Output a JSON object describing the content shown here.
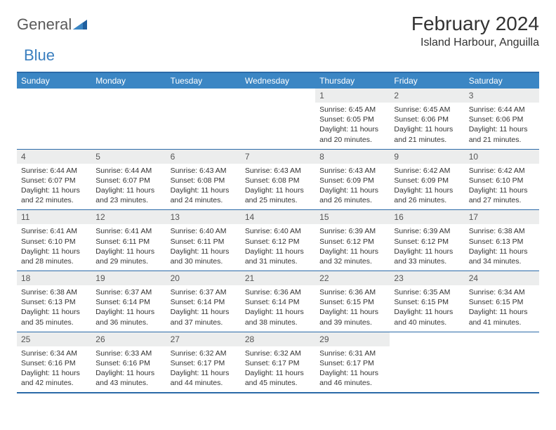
{
  "logo": {
    "text1": "General",
    "text2": "Blue"
  },
  "title": "February 2024",
  "location": "Island Harbour, Anguilla",
  "weekdays": [
    "Sunday",
    "Monday",
    "Tuesday",
    "Wednesday",
    "Thursday",
    "Friday",
    "Saturday"
  ],
  "colors": {
    "header_bar": "#3b86c4",
    "border": "#2b6aa8",
    "daynum_bg": "#eceded",
    "logo_blue": "#3b7fbf"
  },
  "fonts": {
    "month_title_size": 28,
    "location_size": 16,
    "weekday_size": 12,
    "daynum_size": 12,
    "cell_size": 10.5
  },
  "weeks": [
    [
      null,
      null,
      null,
      null,
      {
        "n": "1",
        "sunrise": "6:45 AM",
        "sunset": "6:05 PM",
        "dl": "11 hours and 20 minutes."
      },
      {
        "n": "2",
        "sunrise": "6:45 AM",
        "sunset": "6:06 PM",
        "dl": "11 hours and 21 minutes."
      },
      {
        "n": "3",
        "sunrise": "6:44 AM",
        "sunset": "6:06 PM",
        "dl": "11 hours and 21 minutes."
      }
    ],
    [
      {
        "n": "4",
        "sunrise": "6:44 AM",
        "sunset": "6:07 PM",
        "dl": "11 hours and 22 minutes."
      },
      {
        "n": "5",
        "sunrise": "6:44 AM",
        "sunset": "6:07 PM",
        "dl": "11 hours and 23 minutes."
      },
      {
        "n": "6",
        "sunrise": "6:43 AM",
        "sunset": "6:08 PM",
        "dl": "11 hours and 24 minutes."
      },
      {
        "n": "7",
        "sunrise": "6:43 AM",
        "sunset": "6:08 PM",
        "dl": "11 hours and 25 minutes."
      },
      {
        "n": "8",
        "sunrise": "6:43 AM",
        "sunset": "6:09 PM",
        "dl": "11 hours and 26 minutes."
      },
      {
        "n": "9",
        "sunrise": "6:42 AM",
        "sunset": "6:09 PM",
        "dl": "11 hours and 26 minutes."
      },
      {
        "n": "10",
        "sunrise": "6:42 AM",
        "sunset": "6:10 PM",
        "dl": "11 hours and 27 minutes."
      }
    ],
    [
      {
        "n": "11",
        "sunrise": "6:41 AM",
        "sunset": "6:10 PM",
        "dl": "11 hours and 28 minutes."
      },
      {
        "n": "12",
        "sunrise": "6:41 AM",
        "sunset": "6:11 PM",
        "dl": "11 hours and 29 minutes."
      },
      {
        "n": "13",
        "sunrise": "6:40 AM",
        "sunset": "6:11 PM",
        "dl": "11 hours and 30 minutes."
      },
      {
        "n": "14",
        "sunrise": "6:40 AM",
        "sunset": "6:12 PM",
        "dl": "11 hours and 31 minutes."
      },
      {
        "n": "15",
        "sunrise": "6:39 AM",
        "sunset": "6:12 PM",
        "dl": "11 hours and 32 minutes."
      },
      {
        "n": "16",
        "sunrise": "6:39 AM",
        "sunset": "6:12 PM",
        "dl": "11 hours and 33 minutes."
      },
      {
        "n": "17",
        "sunrise": "6:38 AM",
        "sunset": "6:13 PM",
        "dl": "11 hours and 34 minutes."
      }
    ],
    [
      {
        "n": "18",
        "sunrise": "6:38 AM",
        "sunset": "6:13 PM",
        "dl": "11 hours and 35 minutes."
      },
      {
        "n": "19",
        "sunrise": "6:37 AM",
        "sunset": "6:14 PM",
        "dl": "11 hours and 36 minutes."
      },
      {
        "n": "20",
        "sunrise": "6:37 AM",
        "sunset": "6:14 PM",
        "dl": "11 hours and 37 minutes."
      },
      {
        "n": "21",
        "sunrise": "6:36 AM",
        "sunset": "6:14 PM",
        "dl": "11 hours and 38 minutes."
      },
      {
        "n": "22",
        "sunrise": "6:36 AM",
        "sunset": "6:15 PM",
        "dl": "11 hours and 39 minutes."
      },
      {
        "n": "23",
        "sunrise": "6:35 AM",
        "sunset": "6:15 PM",
        "dl": "11 hours and 40 minutes."
      },
      {
        "n": "24",
        "sunrise": "6:34 AM",
        "sunset": "6:15 PM",
        "dl": "11 hours and 41 minutes."
      }
    ],
    [
      {
        "n": "25",
        "sunrise": "6:34 AM",
        "sunset": "6:16 PM",
        "dl": "11 hours and 42 minutes."
      },
      {
        "n": "26",
        "sunrise": "6:33 AM",
        "sunset": "6:16 PM",
        "dl": "11 hours and 43 minutes."
      },
      {
        "n": "27",
        "sunrise": "6:32 AM",
        "sunset": "6:17 PM",
        "dl": "11 hours and 44 minutes."
      },
      {
        "n": "28",
        "sunrise": "6:32 AM",
        "sunset": "6:17 PM",
        "dl": "11 hours and 45 minutes."
      },
      {
        "n": "29",
        "sunrise": "6:31 AM",
        "sunset": "6:17 PM",
        "dl": "11 hours and 46 minutes."
      },
      null,
      null
    ]
  ]
}
